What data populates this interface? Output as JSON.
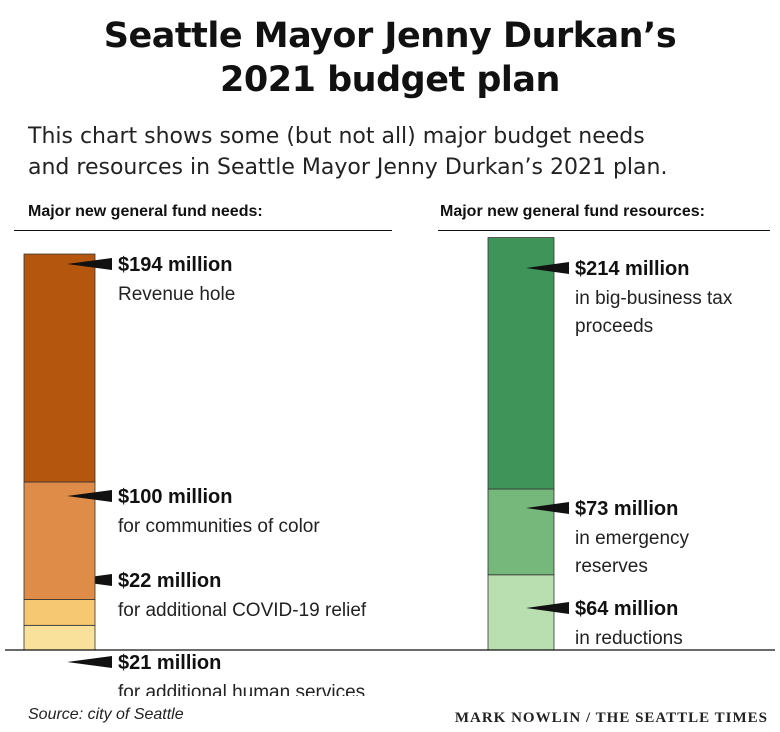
{
  "title_lines": [
    "Seattle Mayor Jenny Durkan’s",
    "2021 budget plan"
  ],
  "subtitle_lines": [
    "This chart shows some (but not all) major budget needs",
    "and resources in Seattle Mayor Jenny Durkan’s 2021 plan."
  ],
  "left_header": "Major new general fund needs:",
  "right_header": "Major new general fund resources:",
  "source": "Source: city of Seattle",
  "credit": "MARK NOWLIN / THE SEATTLE TIMES",
  "chart_data": [
    {
      "type": "bar",
      "stacked": true,
      "title": "Major new general fund needs:",
      "unit": "$ million",
      "segments": [
        {
          "value": 21,
          "amount": "$21 million",
          "desc": "for additional human services",
          "color": "#f9e19b"
        },
        {
          "value": 22,
          "amount": "$22 million",
          "desc": "for additional COVID-19 relief",
          "color": "#f6c872"
        },
        {
          "value": 100,
          "amount": "$100 million",
          "desc": "for communities of color",
          "color": "#de8c47"
        },
        {
          "value": 194,
          "amount": "$194 million",
          "desc": "Revenue hole",
          "color": "#b5560f"
        }
      ]
    },
    {
      "type": "bar",
      "stacked": true,
      "title": "Major new general fund resources:",
      "unit": "$ million",
      "segments": [
        {
          "value": 64,
          "amount": "$64 million",
          "desc": "in reductions",
          "color": "#b9dfb0"
        },
        {
          "value": 73,
          "amount": "$73 million",
          "desc": "in emergency reserves",
          "color": "#76b87b"
        },
        {
          "value": 214,
          "amount": "$214 million",
          "desc": "in big-business tax proceeds",
          "color": "#3f945a"
        }
      ]
    }
  ]
}
